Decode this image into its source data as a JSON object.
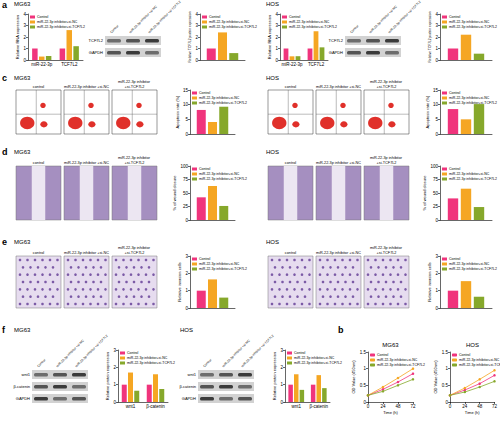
{
  "panel_labels": [
    "a",
    "c",
    "d",
    "e",
    "f",
    "b"
  ],
  "blot_lane_labels": [
    "Control",
    "miR-22-3p inhibitor +si-NC",
    "miR-22-3p inhibitor +si-TCF7L2"
  ],
  "image_labels": [
    "control",
    "miR-22-3p inhibitor +si-NC",
    "miR-22-3p inhibitor +si-TCF7L2"
  ],
  "blot_rows": {
    "a": [
      "TCF7L2",
      "GAPDH"
    ],
    "f": [
      "wnt1",
      "β-catenin",
      "GAPDH"
    ]
  },
  "chart_data": [
    {
      "type": "bar",
      "title": "MG63",
      "y_label": "Relative RNA expression",
      "categories": [
        "miR-22-3p",
        "TCF7L2"
      ],
      "ylim": [
        0,
        4
      ],
      "yticks": [
        0,
        1,
        2,
        3,
        4
      ],
      "grid": false,
      "legend": "upper left",
      "series": [
        {
          "name": "Control",
          "color": "#f0347c",
          "values": [
            1.0,
            1.0
          ]
        },
        {
          "name": "miR-22-3p inhibitor+si-NC",
          "color": "#f5a623",
          "values": [
            0.3,
            2.6
          ]
        },
        {
          "name": "miR-22-3p inhibitor+si-TCF7L2",
          "color": "#86a82b",
          "values": [
            0.35,
            1.2
          ]
        }
      ]
    },
    {
      "type": "bar",
      "y_label": "Relative TCF7L2 protein expression",
      "categories": [
        null
      ],
      "ylim": [
        0,
        4
      ],
      "yticks": [
        0,
        1,
        2,
        3,
        4
      ],
      "grid": false,
      "legend": "upper left",
      "series": [
        {
          "name": "Control",
          "color": "#f0347c",
          "values": [
            1.0
          ]
        },
        {
          "name": "miR-22-3p inhibitor+si-NC",
          "color": "#f5a623",
          "values": [
            2.4
          ]
        },
        {
          "name": "miR-22-3p inhibitor+si-TCF7L2",
          "color": "#86a82b",
          "values": [
            0.6
          ]
        }
      ]
    },
    {
      "type": "bar",
      "title": "HOS",
      "y_label": "Relative RNA expression",
      "categories": [
        "miR-22-3p",
        "TCF7L2"
      ],
      "ylim": [
        0,
        4
      ],
      "yticks": [
        0,
        1,
        2,
        3,
        4
      ],
      "grid": false,
      "legend": "upper left",
      "series": [
        {
          "name": "Control",
          "color": "#f0347c",
          "values": [
            1.0,
            1.0
          ]
        },
        {
          "name": "miR-22-3p inhibitor+si-NC",
          "color": "#f5a623",
          "values": [
            0.32,
            2.5
          ]
        },
        {
          "name": "miR-22-3p inhibitor+si-TCF7L2",
          "color": "#86a82b",
          "values": [
            0.33,
            1.1
          ]
        }
      ]
    },
    {
      "type": "bar",
      "y_label": "Relative TCF7L2 protein expression",
      "categories": [
        null
      ],
      "ylim": [
        0,
        4
      ],
      "yticks": [
        0,
        1,
        2,
        3,
        4
      ],
      "grid": false,
      "legend": "upper left",
      "series": [
        {
          "name": "Control",
          "color": "#f0347c",
          "values": [
            1.0
          ]
        },
        {
          "name": "miR-22-3p inhibitor+si-NC",
          "color": "#f5a623",
          "values": [
            2.2
          ]
        },
        {
          "name": "miR-22-3p inhibitor+si-TCF7L2",
          "color": "#86a82b",
          "values": [
            0.55
          ]
        }
      ]
    },
    {
      "type": "bar",
      "title": "MG63",
      "y_label": "Apoptosis rate (%)",
      "categories": [
        null
      ],
      "ylim": [
        0,
        15
      ],
      "yticks": [
        0,
        5,
        10,
        15
      ],
      "grid": false,
      "legend": "upper left",
      "series": [
        {
          "name": "Control",
          "color": "#f0347c",
          "values": [
            8.2
          ]
        },
        {
          "name": "miR-22-3p inhibitor+si-NC",
          "color": "#f5a623",
          "values": [
            4.1
          ]
        },
        {
          "name": "miR-22-3p inhibitor+si-TCF7L2",
          "color": "#86a82b",
          "values": [
            9.3
          ]
        }
      ]
    },
    {
      "type": "bar",
      "title": "HOS",
      "y_label": "Apoptosis rate (%)",
      "categories": [
        null
      ],
      "ylim": [
        0,
        15
      ],
      "yticks": [
        0,
        5,
        10,
        15
      ],
      "grid": false,
      "legend": "upper left",
      "series": [
        {
          "name": "Control",
          "color": "#f0347c",
          "values": [
            8.5
          ]
        },
        {
          "name": "miR-22-3p inhibitor+si-NC",
          "color": "#f5a623",
          "values": [
            5.0
          ]
        },
        {
          "name": "miR-22-3p inhibitor+si-TCF7L2",
          "color": "#86a82b",
          "values": [
            10.2
          ]
        }
      ]
    },
    {
      "type": "bar",
      "title": "MG63",
      "y_label": "% of wound closure",
      "categories": [
        null
      ],
      "ylim": [
        0,
        100
      ],
      "yticks": [
        0,
        25,
        50,
        75,
        100
      ],
      "grid": false,
      "legend": "upper left",
      "series": [
        {
          "name": "Control",
          "color": "#f0347c",
          "values": [
            42
          ]
        },
        {
          "name": "miR-22-3p inhibitor+si-NC",
          "color": "#f5a623",
          "values": [
            63
          ]
        },
        {
          "name": "miR-22-3p inhibitor+si-TCF7L2",
          "color": "#86a82b",
          "values": [
            26
          ]
        }
      ]
    },
    {
      "type": "bar",
      "title": "HOS",
      "y_label": "% of wound closure",
      "categories": [
        null
      ],
      "ylim": [
        0,
        100
      ],
      "yticks": [
        0,
        25,
        50,
        75,
        100
      ],
      "grid": false,
      "legend": "upper left",
      "series": [
        {
          "name": "Control",
          "color": "#f0347c",
          "values": [
            40
          ]
        },
        {
          "name": "miR-22-3p inhibitor+si-NC",
          "color": "#f5a623",
          "values": [
            58
          ]
        },
        {
          "name": "miR-22-3p inhibitor+si-TCF7L2",
          "color": "#86a82b",
          "values": [
            24
          ]
        }
      ]
    },
    {
      "type": "bar",
      "title": "MG63",
      "y_label": "Relative invasion cells",
      "categories": [
        null
      ],
      "ylim": [
        0,
        3
      ],
      "yticks": [
        0,
        1,
        2,
        3
      ],
      "grid": false,
      "legend": "upper left",
      "series": [
        {
          "name": "Control",
          "color": "#f0347c",
          "values": [
            1.0
          ]
        },
        {
          "name": "miR-22-3p inhibitor+si-NC",
          "color": "#f5a623",
          "values": [
            1.65
          ]
        },
        {
          "name": "miR-22-3p inhibitor+si-TCF7L2",
          "color": "#86a82b",
          "values": [
            0.6
          ]
        }
      ]
    },
    {
      "type": "bar",
      "title": "HOS",
      "y_label": "Relative invasion cells",
      "categories": [
        null
      ],
      "ylim": [
        0,
        3
      ],
      "yticks": [
        0,
        1,
        2,
        3
      ],
      "grid": false,
      "legend": "upper left",
      "series": [
        {
          "name": "Control",
          "color": "#f0347c",
          "values": [
            1.0
          ]
        },
        {
          "name": "miR-22-3p inhibitor+si-NC",
          "color": "#f5a623",
          "values": [
            1.55
          ]
        },
        {
          "name": "miR-22-3p inhibitor+si-TCF7L2",
          "color": "#86a82b",
          "values": [
            0.65
          ]
        }
      ]
    },
    {
      "type": "bar",
      "title": "MG63",
      "y_label": "Relative protein expression",
      "categories": [
        "wnt1",
        "β-catenin"
      ],
      "ylim": [
        0,
        3
      ],
      "yticks": [
        0,
        1,
        2,
        3
      ],
      "grid": false,
      "legend": "upper left",
      "series": [
        {
          "name": "Control",
          "color": "#f0347c",
          "values": [
            1.0,
            1.0
          ]
        },
        {
          "name": "miR-22-3p inhibitor+si-NC",
          "color": "#f5a623",
          "values": [
            1.7,
            1.6
          ]
        },
        {
          "name": "miR-22-3p inhibitor+si-TCF7L2",
          "color": "#86a82b",
          "values": [
            0.65,
            0.75
          ]
        }
      ]
    },
    {
      "type": "bar",
      "title": "HOS",
      "y_label": "Relative protein expression",
      "categories": [
        "wnt1",
        "β-catenin"
      ],
      "ylim": [
        0,
        3
      ],
      "yticks": [
        0,
        1,
        2,
        3
      ],
      "grid": false,
      "legend": "upper left",
      "series": [
        {
          "name": "Control",
          "color": "#f0347c",
          "values": [
            1.0,
            1.0
          ]
        },
        {
          "name": "miR-22-3p inhibitor+si-NC",
          "color": "#f5a623",
          "values": [
            1.6,
            1.55
          ]
        },
        {
          "name": "miR-22-3p inhibitor+si-TCF7L2",
          "color": "#86a82b",
          "values": [
            0.7,
            0.8
          ]
        }
      ]
    },
    {
      "type": "line",
      "title": "MG63",
      "x_label": "Time (h)",
      "y_label": "OD Value (450nm)",
      "x": [
        0,
        24,
        48,
        72
      ],
      "xlim": [
        0,
        72
      ],
      "xticks": [
        0,
        24,
        48,
        72
      ],
      "ylim": [
        0,
        1.5
      ],
      "yticks": [
        0,
        0.5,
        1,
        1.5
      ],
      "grid": false,
      "legend": "upper left",
      "marker": "circle",
      "series": [
        {
          "name": "Control",
          "color": "#f0347c",
          "values": [
            0.2,
            0.38,
            0.6,
            0.85
          ]
        },
        {
          "name": "miR-22-3p inhibitor+si-NC",
          "color": "#f5a623",
          "values": [
            0.2,
            0.45,
            0.72,
            1.0
          ]
        },
        {
          "name": "miR-22-3p inhibitor+si-TCF7L2",
          "color": "#86a82b",
          "values": [
            0.2,
            0.32,
            0.5,
            0.68
          ]
        }
      ]
    },
    {
      "type": "line",
      "title": "HOS",
      "x_label": "Time (h)",
      "y_label": "OD Value (450nm)",
      "x": [
        0,
        24,
        48,
        72
      ],
      "xlim": [
        0,
        72
      ],
      "xticks": [
        0,
        24,
        48,
        72
      ],
      "ylim": [
        0,
        1.5
      ],
      "yticks": [
        0,
        0.5,
        1,
        1.5
      ],
      "grid": false,
      "legend": "upper left",
      "marker": "circle",
      "series": [
        {
          "name": "Control",
          "color": "#f0347c",
          "values": [
            0.2,
            0.36,
            0.55,
            0.8
          ]
        },
        {
          "name": "miR-22-3p inhibitor+si-NC",
          "color": "#f5a623",
          "values": [
            0.2,
            0.42,
            0.68,
            0.95
          ]
        },
        {
          "name": "miR-22-3p inhibitor+si-TCF7L2",
          "color": "#86a82b",
          "values": [
            0.2,
            0.3,
            0.45,
            0.62
          ]
        }
      ]
    }
  ]
}
